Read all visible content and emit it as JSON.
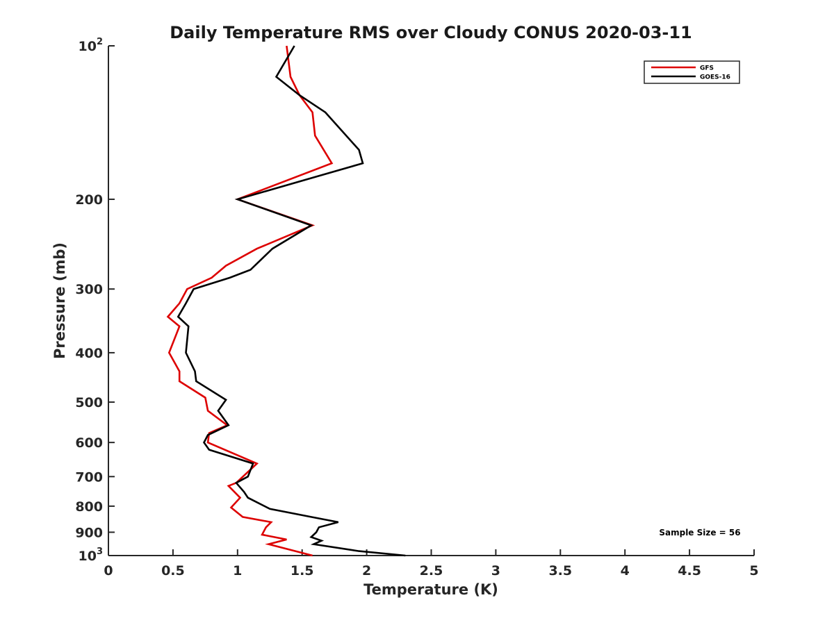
{
  "chart_data": {
    "type": "line",
    "title": "Daily Temperature RMS over Cloudy CONUS 2020-03-11",
    "xlabel": "Temperature (K)",
    "ylabel": "Pressure (mb)",
    "xlim": [
      0,
      5
    ],
    "ylim": [
      1000,
      100
    ],
    "y_scale": "log",
    "y_reversed": true,
    "grid": false,
    "legend_position": "top-right",
    "x_ticks": [
      "0",
      "0.5",
      "1",
      "1.5",
      "2",
      "2.5",
      "3",
      "3.5",
      "4",
      "4.5",
      "5"
    ],
    "y_ticks": [
      {
        "value": 100,
        "base": "10",
        "exp": "2"
      },
      {
        "value": 200,
        "label": "200"
      },
      {
        "value": 300,
        "label": "300"
      },
      {
        "value": 400,
        "label": "400"
      },
      {
        "value": 500,
        "label": "500"
      },
      {
        "value": 600,
        "label": "600"
      },
      {
        "value": 700,
        "label": "700"
      },
      {
        "value": 800,
        "label": "800"
      },
      {
        "value": 900,
        "label": "900"
      },
      {
        "value": 1000,
        "base": "10",
        "exp": "3"
      }
    ],
    "annotation": "Sample Size = 56",
    "series": [
      {
        "name": "GFS",
        "color": "#dd0000",
        "points": [
          [
            1.38,
            100
          ],
          [
            1.41,
            115
          ],
          [
            1.48,
            125
          ],
          [
            1.58,
            135
          ],
          [
            1.6,
            150
          ],
          [
            1.73,
            170
          ],
          [
            1.0,
            200
          ],
          [
            1.58,
            225
          ],
          [
            1.15,
            250
          ],
          [
            0.91,
            270
          ],
          [
            0.8,
            285
          ],
          [
            0.61,
            300
          ],
          [
            0.55,
            320
          ],
          [
            0.46,
            340
          ],
          [
            0.55,
            355
          ],
          [
            0.47,
            400
          ],
          [
            0.55,
            435
          ],
          [
            0.55,
            455
          ],
          [
            0.75,
            490
          ],
          [
            0.77,
            520
          ],
          [
            0.92,
            555
          ],
          [
            0.78,
            575
          ],
          [
            0.77,
            600
          ],
          [
            1.15,
            660
          ],
          [
            0.99,
            720
          ],
          [
            0.93,
            730
          ],
          [
            1.02,
            770
          ],
          [
            0.95,
            805
          ],
          [
            1.04,
            840
          ],
          [
            1.26,
            860
          ],
          [
            1.22,
            880
          ],
          [
            1.19,
            910
          ],
          [
            1.38,
            930
          ],
          [
            1.24,
            950
          ],
          [
            1.58,
            1000
          ]
        ]
      },
      {
        "name": "GOES-16",
        "color": "#000000",
        "points": [
          [
            1.44,
            100
          ],
          [
            1.3,
            115
          ],
          [
            1.48,
            125
          ],
          [
            1.68,
            135
          ],
          [
            1.94,
            160
          ],
          [
            1.97,
            170
          ],
          [
            1.0,
            200
          ],
          [
            1.57,
            225
          ],
          [
            1.27,
            250
          ],
          [
            1.1,
            275
          ],
          [
            0.94,
            285
          ],
          [
            0.66,
            300
          ],
          [
            0.6,
            320
          ],
          [
            0.54,
            340
          ],
          [
            0.62,
            355
          ],
          [
            0.6,
            400
          ],
          [
            0.67,
            435
          ],
          [
            0.68,
            455
          ],
          [
            0.91,
            495
          ],
          [
            0.85,
            520
          ],
          [
            0.93,
            555
          ],
          [
            0.77,
            580
          ],
          [
            0.74,
            600
          ],
          [
            0.78,
            620
          ],
          [
            1.12,
            660
          ],
          [
            1.08,
            700
          ],
          [
            0.99,
            720
          ],
          [
            1.05,
            750
          ],
          [
            1.08,
            770
          ],
          [
            1.25,
            810
          ],
          [
            1.57,
            840
          ],
          [
            1.78,
            860
          ],
          [
            1.63,
            880
          ],
          [
            1.61,
            900
          ],
          [
            1.57,
            920
          ],
          [
            1.65,
            935
          ],
          [
            1.59,
            950
          ],
          [
            1.94,
            980
          ],
          [
            2.3,
            1000
          ]
        ]
      }
    ]
  }
}
